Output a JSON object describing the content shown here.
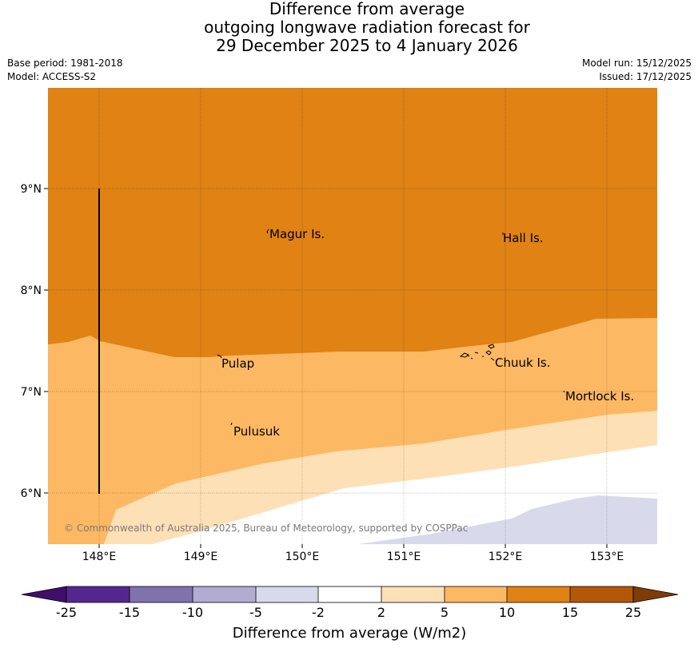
{
  "title": {
    "line1": "Difference from average",
    "line2": "outgoing longwave radiation forecast for",
    "line3": "29 December 2025 to 4 January 2026"
  },
  "meta": {
    "base_period": "Base period: 1981-2018",
    "model": "Model: ACCESS-S2",
    "model_run": "Model run: 15/12/2025",
    "issued": "Issued: 17/12/2025"
  },
  "map": {
    "lon_labels": [
      "148°E",
      "149°E",
      "150°E",
      "151°E",
      "152°E",
      "153°E"
    ],
    "lat_labels": [
      "9°N",
      "8°N",
      "7°N",
      "6°N"
    ],
    "places": {
      "magur": "Magur Is.",
      "hall": "Hall Is.",
      "pulap": "Pulap",
      "chuuk": "Chuuk Is.",
      "mortlock": "Mortlock Is.",
      "pulusuk": "Pulusuk"
    },
    "copyright": "© Commonwealth of Australia 2025, Bureau of Meteorology, supported by COSPPac"
  },
  "colorbar": {
    "title": "Difference from average (W/m2)",
    "ticks": [
      "-25",
      "-15",
      "-10",
      "-5",
      "-2",
      "2",
      "5",
      "10",
      "15",
      "25"
    ],
    "colors": {
      "lt_neg25": "#3f0f6a",
      "neg25_neg15": "#54278f",
      "neg15_neg10": "#8073ac",
      "neg10_neg5": "#b2abd2",
      "neg5_neg2": "#d8daeb",
      "neg2_2": "#ffffff",
      "p2_5": "#fee0b6",
      "p5_10": "#fdb863",
      "p10_15": "#e08214",
      "p15_25": "#b35806",
      "gt_25": "#7f3b08"
    }
  }
}
